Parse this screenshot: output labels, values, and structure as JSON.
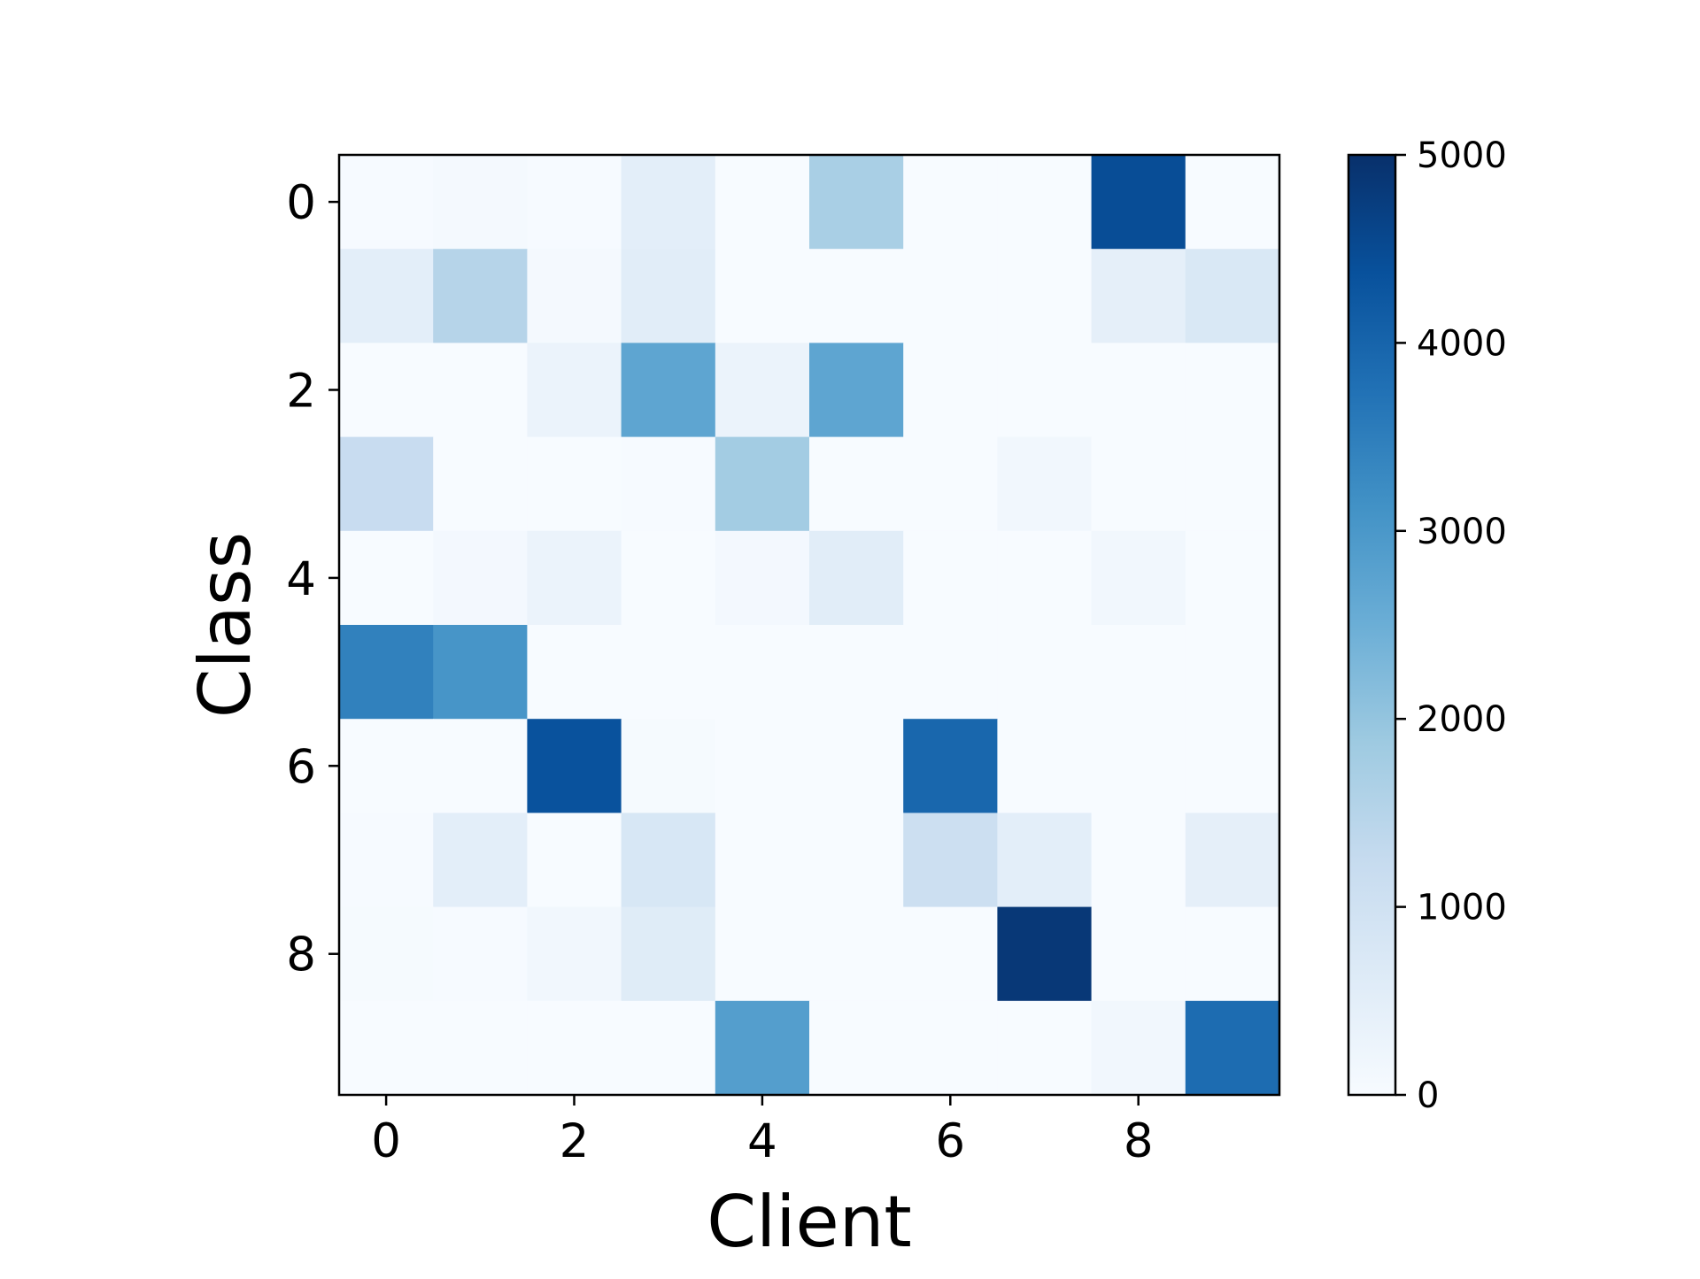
{
  "chart_data": {
    "type": "heatmap",
    "title": "",
    "xlabel": "Client",
    "ylabel": "Class",
    "x": [
      0,
      1,
      2,
      3,
      4,
      5,
      6,
      7,
      8,
      9
    ],
    "y": [
      0,
      1,
      2,
      3,
      4,
      5,
      6,
      7,
      8,
      9
    ],
    "x_tick_labels": [
      "0",
      "2",
      "4",
      "6",
      "8"
    ],
    "y_tick_labels": [
      "0",
      "2",
      "4",
      "6",
      "8"
    ],
    "values": [
      [
        20,
        80,
        20,
        500,
        0,
        1700,
        0,
        0,
        4450,
        0
      ],
      [
        500,
        1500,
        80,
        550,
        0,
        0,
        0,
        0,
        450,
        750
      ],
      [
        0,
        0,
        300,
        2700,
        300,
        2700,
        0,
        0,
        0,
        0
      ],
      [
        1200,
        0,
        0,
        30,
        1800,
        0,
        0,
        150,
        0,
        0
      ],
      [
        0,
        100,
        300,
        0,
        100,
        550,
        0,
        0,
        150,
        0
      ],
      [
        3450,
        3050,
        0,
        0,
        0,
        0,
        0,
        0,
        0,
        0
      ],
      [
        0,
        0,
        4350,
        50,
        0,
        0,
        3950,
        0,
        0,
        0
      ],
      [
        20,
        500,
        0,
        800,
        0,
        0,
        1100,
        500,
        0,
        450
      ],
      [
        50,
        30,
        150,
        600,
        0,
        0,
        0,
        4850,
        0,
        0
      ],
      [
        0,
        0,
        0,
        0,
        2850,
        0,
        0,
        0,
        150,
        3850
      ]
    ],
    "colorbar": {
      "range": [
        0,
        5000
      ],
      "tick_labels": [
        "0",
        "1000",
        "2000",
        "3000",
        "4000",
        "5000"
      ],
      "colormap": "Blues",
      "color_low": "#f7fbff",
      "color_high": "#08306b"
    },
    "grid": false,
    "legend": "none"
  }
}
